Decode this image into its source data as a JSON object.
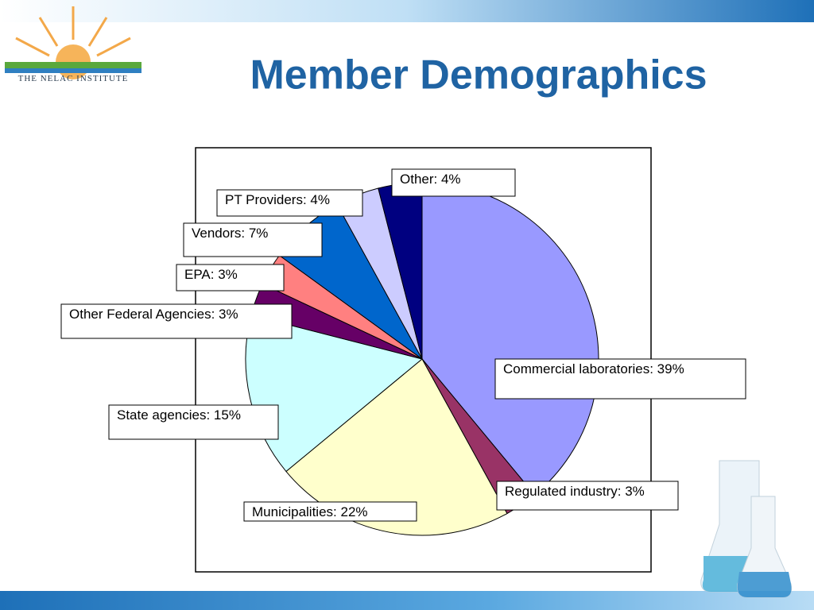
{
  "header": {
    "logo_text": "THE NELAC INSTITUTE"
  },
  "chart_data": {
    "type": "pie",
    "title": "Member Demographics",
    "values": [
      39,
      3,
      22,
      15,
      3,
      3,
      7,
      4,
      4
    ],
    "value_labels": [
      "Commercial laboratories: 39%",
      "Regulated industry: 3%",
      "Municipalities: 22%",
      "State agencies: 15%",
      "Other Federal Agencies: 3%",
      "EPA: 3%",
      "Vendors: 7%",
      "PT Providers: 4%",
      "Other: 4%"
    ],
    "colors": [
      "#9999ff",
      "#993366",
      "#ffffcc",
      "#ccffff",
      "#660066",
      "#ff8080",
      "#0066cc",
      "#ccccff",
      "#000080"
    ]
  }
}
